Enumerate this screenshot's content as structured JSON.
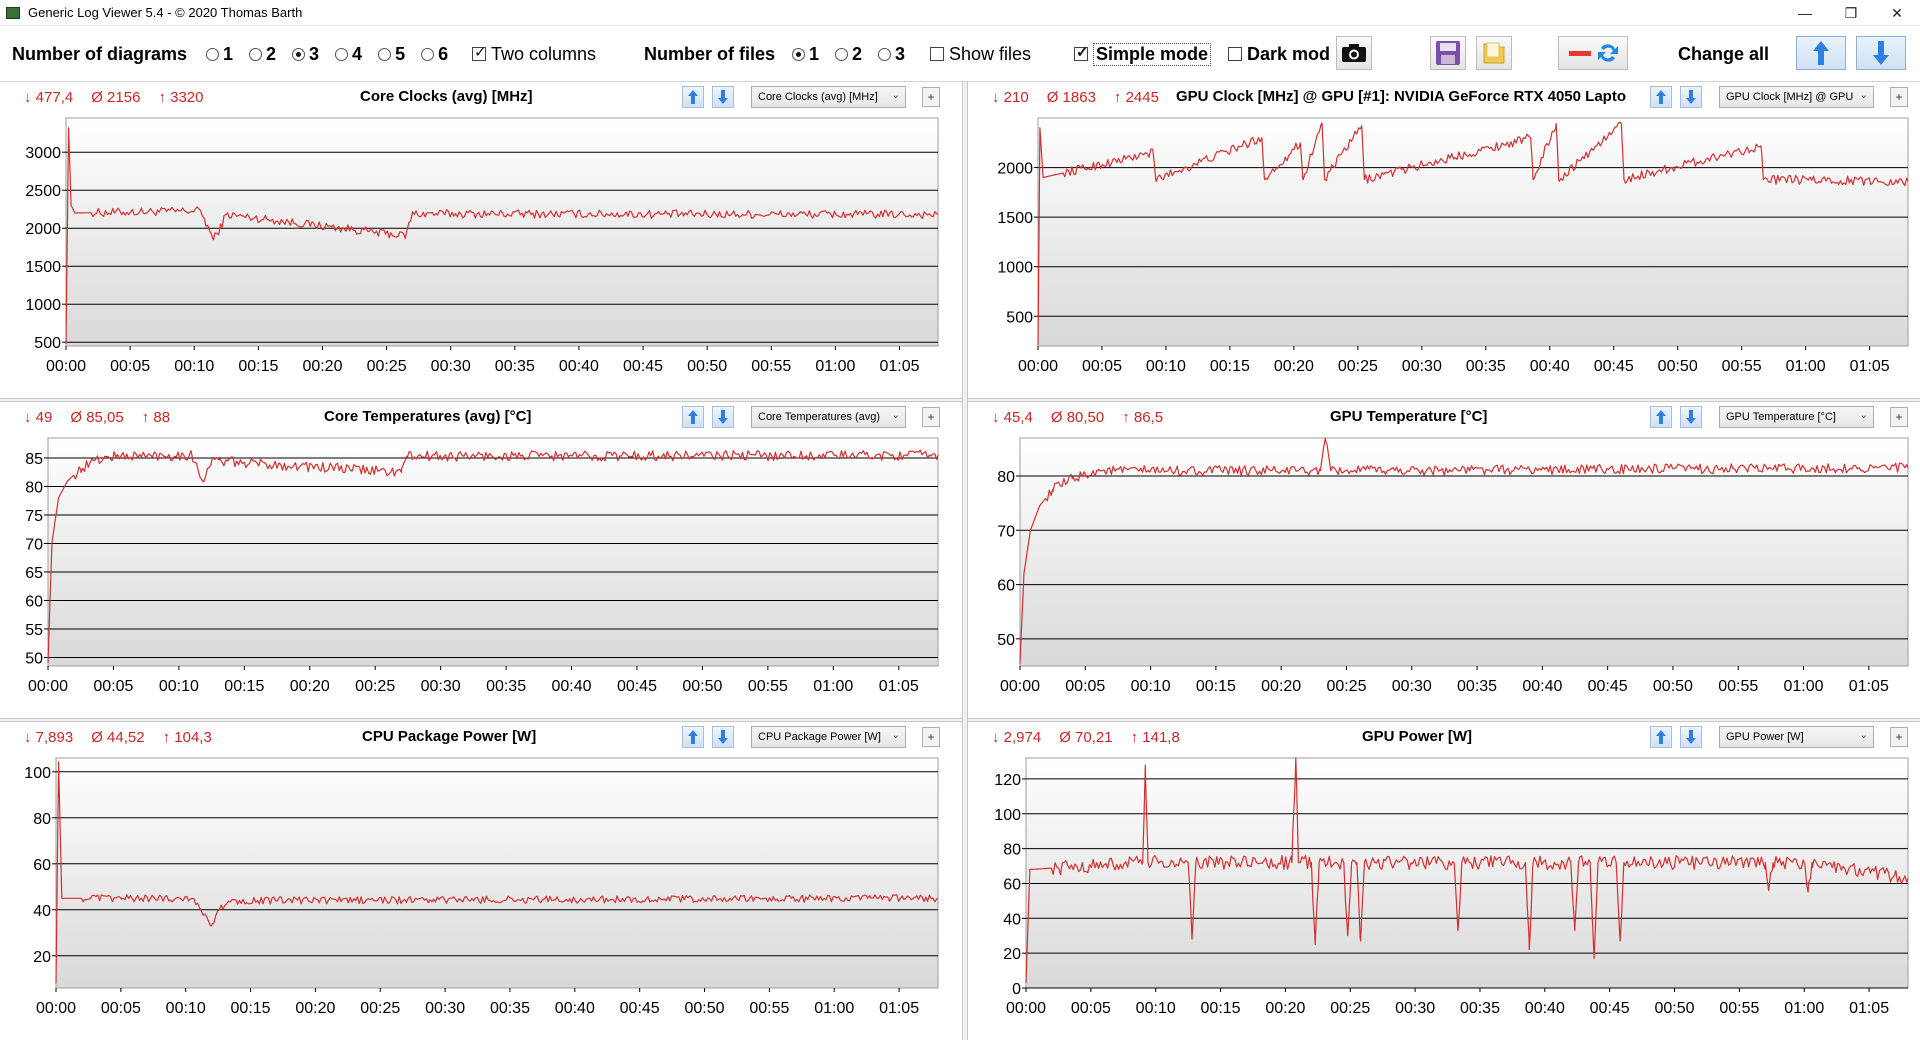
{
  "window": {
    "title": "Generic Log Viewer 5.4 - © 2020 Thomas Barth",
    "minimize": "—",
    "restore": "❐",
    "close": "✕"
  },
  "toolbar": {
    "diagrams_label": "Number of diagrams",
    "diagram_options": [
      "1",
      "2",
      "3",
      "4",
      "5",
      "6"
    ],
    "diagrams_selected": "3",
    "two_columns_label": "Two columns",
    "two_columns_checked": true,
    "files_label": "Number of files",
    "file_options": [
      "1",
      "2",
      "3"
    ],
    "files_selected": "1",
    "show_files_label": "Show files",
    "show_files_checked": false,
    "simple_mode_label": "Simple mode",
    "simple_mode_checked": true,
    "dark_mode_label": "Dark mod",
    "dark_mode_checked": false,
    "change_all_label": "Change all"
  },
  "colors": {
    "series": "#d32f2f",
    "stats": "#c62828",
    "grid": "#000000",
    "plot_gradient_bottom": "#d9d9d9"
  },
  "panels": [
    {
      "title": "Core Clocks (avg) [MHz]",
      "stat_min": "↓ 477,4",
      "stat_avg": "Ø 2156",
      "stat_max": "↑ 3320",
      "select_label": "Core Clocks (avg) [MHz]",
      "chart_data": {
        "type": "line",
        "title": "Core Clocks (avg) [MHz]",
        "xlabel": "",
        "ylabel": "",
        "x_ticks": [
          "00:00",
          "00:05",
          "00:10",
          "00:15",
          "00:20",
          "00:25",
          "00:30",
          "00:35",
          "00:40",
          "00:45",
          "00:50",
          "00:55",
          "01:00",
          "01:05"
        ],
        "x_range_min": [
          0,
          68
        ],
        "y_ticks": [
          500,
          1000,
          1500,
          2000,
          2500,
          3000
        ],
        "ylim": [
          450,
          3450
        ],
        "series": [
          {
            "min": 477.4,
            "avg": 2156,
            "max": 3320,
            "baseline": 2170,
            "noise": 55,
            "points": [
              [
                0,
                477
              ],
              [
                0.2,
                3320
              ],
              [
                0.4,
                2300
              ],
              [
                0.7,
                2200
              ],
              [
                10.5,
                2230
              ],
              [
                11.5,
                1850
              ],
              [
                12,
                2000
              ],
              [
                12.5,
                2180
              ],
              [
                26.5,
                1900
              ],
              [
                27,
                2190
              ],
              [
                68,
                2180
              ]
            ]
          }
        ],
        "grid": true
      }
    },
    {
      "title": "GPU Clock [MHz] @ GPU [#1]: NVIDIA GeForce RTX 4050 Lapto",
      "stat_min": "↓ 210",
      "stat_avg": "Ø 1863",
      "stat_max": "↑ 2445",
      "select_label": "GPU Clock [MHz] @ GPU",
      "chart_data": {
        "type": "line",
        "title": "GPU Clock [MHz] @ GPU [#1]: NVIDIA GeForce RTX 4050 Lapto",
        "xlabel": "",
        "ylabel": "",
        "x_ticks": [
          "00:00",
          "00:05",
          "00:10",
          "00:15",
          "00:20",
          "00:25",
          "00:30",
          "00:35",
          "00:40",
          "00:45",
          "00:50",
          "00:55",
          "01:00",
          "01:05"
        ],
        "x_range_min": [
          0,
          68
        ],
        "y_ticks": [
          500,
          1000,
          1500,
          2000
        ],
        "ylim": [
          200,
          2500
        ],
        "series": [
          {
            "min": 210,
            "avg": 1863,
            "max": 2445,
            "baseline": 1870,
            "noise": 45,
            "points": [
              [
                0,
                210
              ],
              [
                0.15,
                2400
              ],
              [
                0.4,
                1900
              ],
              [
                9,
                2150
              ],
              [
                9.2,
                1880
              ],
              [
                17.5,
                2300
              ],
              [
                17.7,
                1880
              ],
              [
                20.5,
                2250
              ],
              [
                20.7,
                1880
              ],
              [
                22.2,
                2450
              ],
              [
                22.4,
                1880
              ],
              [
                25.3,
                2420
              ],
              [
                25.5,
                1880
              ],
              [
                38.5,
                2300
              ],
              [
                38.7,
                1880
              ],
              [
                40.5,
                2445
              ],
              [
                40.7,
                1880
              ],
              [
                45.6,
                2440
              ],
              [
                45.8,
                1880
              ],
              [
                56.5,
                2220
              ],
              [
                56.7,
                1880
              ],
              [
                68,
                1860
              ]
            ]
          }
        ],
        "grid": true
      }
    },
    {
      "title": "Core Temperatures (avg) [°C]",
      "stat_min": "↓ 49",
      "stat_avg": "Ø 85,05",
      "stat_max": "↑ 88",
      "select_label": "Core Temperatures (avg)",
      "chart_data": {
        "type": "line",
        "title": "Core Temperatures (avg) [°C]",
        "xlabel": "",
        "ylabel": "",
        "x_ticks": [
          "00:00",
          "00:05",
          "00:10",
          "00:15",
          "00:20",
          "00:25",
          "00:30",
          "00:35",
          "00:40",
          "00:45",
          "00:50",
          "00:55",
          "01:00",
          "01:05"
        ],
        "x_range_min": [
          0,
          68
        ],
        "y_ticks": [
          50,
          55,
          60,
          65,
          70,
          75,
          80,
          85
        ],
        "ylim": [
          48.5,
          88.5
        ],
        "series": [
          {
            "min": 49,
            "avg": 85.05,
            "max": 88,
            "baseline": 85.3,
            "noise": 0.9,
            "points": [
              [
                0,
                49
              ],
              [
                0.3,
                70
              ],
              [
                0.8,
                78
              ],
              [
                1.5,
                81
              ],
              [
                2.5,
                83
              ],
              [
                3.5,
                84.5
              ],
              [
                5,
                85.3
              ],
              [
                11,
                85.5
              ],
              [
                11.8,
                81
              ],
              [
                12.5,
                84.5
              ],
              [
                27,
                82.5
              ],
              [
                27.4,
                85.3
              ],
              [
                68,
                85.5
              ]
            ]
          }
        ],
        "grid": true
      }
    },
    {
      "title": "GPU Temperature [°C]",
      "stat_min": "↓ 45,4",
      "stat_avg": "Ø 80,50",
      "stat_max": "↑ 86,5",
      "select_label": "GPU Temperature [°C]",
      "chart_data": {
        "type": "line",
        "title": "GPU Temperature [°C]",
        "xlabel": "",
        "ylabel": "",
        "x_ticks": [
          "00:00",
          "00:05",
          "00:10",
          "00:15",
          "00:20",
          "00:25",
          "00:30",
          "00:35",
          "00:40",
          "00:45",
          "00:50",
          "00:55",
          "01:00",
          "01:05"
        ],
        "x_range_min": [
          0,
          68
        ],
        "y_ticks": [
          50,
          60,
          70,
          80
        ],
        "ylim": [
          45,
          87
        ],
        "series": [
          {
            "min": 45.4,
            "avg": 80.5,
            "max": 86.5,
            "baseline": 81.2,
            "noise": 0.9,
            "points": [
              [
                0,
                45.4
              ],
              [
                0.3,
                62
              ],
              [
                0.8,
                70
              ],
              [
                1.5,
                74.5
              ],
              [
                2.5,
                77.5
              ],
              [
                4,
                79.5
              ],
              [
                6,
                81
              ],
              [
                23,
                81
              ],
              [
                23.4,
                86.5
              ],
              [
                23.8,
                81
              ],
              [
                68,
                81.5
              ]
            ]
          }
        ],
        "grid": true
      }
    },
    {
      "title": "CPU Package Power [W]",
      "stat_min": "↓ 7,893",
      "stat_avg": "Ø 44,52",
      "stat_max": "↑ 104,3",
      "select_label": "CPU Package Power [W]",
      "chart_data": {
        "type": "line",
        "title": "CPU Package Power [W]",
        "xlabel": "",
        "ylabel": "",
        "x_ticks": [
          "00:00",
          "00:05",
          "00:10",
          "00:15",
          "00:20",
          "00:25",
          "00:30",
          "00:35",
          "00:40",
          "00:45",
          "00:50",
          "00:55",
          "01:00",
          "01:05"
        ],
        "x_range_min": [
          0,
          68
        ],
        "y_ticks": [
          20,
          40,
          60,
          80,
          100
        ],
        "ylim": [
          6,
          106
        ],
        "series": [
          {
            "min": 7.893,
            "avg": 44.52,
            "max": 104.3,
            "baseline": 45,
            "noise": 1.6,
            "points": [
              [
                0,
                7.9
              ],
              [
                0.2,
                104.3
              ],
              [
                0.45,
                45
              ],
              [
                10.5,
                45
              ],
              [
                11.5,
                38
              ],
              [
                12,
                33
              ],
              [
                12.6,
                40
              ],
              [
                13.5,
                44
              ],
              [
                68,
                45
              ]
            ]
          }
        ],
        "grid": true
      }
    },
    {
      "title": "GPU Power [W]",
      "stat_min": "↓ 2,974",
      "stat_avg": "Ø 70,21",
      "stat_max": "↑ 141,8",
      "select_label": "GPU Power [W]",
      "chart_data": {
        "type": "line",
        "title": "GPU Power [W]",
        "xlabel": "",
        "ylabel": "",
        "x_ticks": [
          "00:00",
          "00:05",
          "00:10",
          "00:15",
          "00:20",
          "00:25",
          "00:30",
          "00:35",
          "00:40",
          "00:45",
          "00:50",
          "00:55",
          "01:00",
          "01:05"
        ],
        "x_range_min": [
          0,
          68
        ],
        "y_ticks": [
          0,
          20,
          40,
          60,
          80,
          100,
          120
        ],
        "ylim": [
          0,
          132
        ],
        "series": [
          {
            "min": 2.974,
            "avg": 70.21,
            "max": 141.8,
            "baseline": 71,
            "noise": 4,
            "points": [
              [
                0,
                3
              ],
              [
                0.3,
                68
              ],
              [
                9,
                72
              ],
              [
                9.2,
                128
              ],
              [
                9.4,
                72
              ],
              [
                12.5,
                72
              ],
              [
                12.8,
                28
              ],
              [
                13.1,
                72
              ],
              [
                20.5,
                72
              ],
              [
                20.8,
                132
              ],
              [
                21,
                72
              ],
              [
                22,
                72
              ],
              [
                22.3,
                25
              ],
              [
                22.6,
                72
              ],
              [
                24.5,
                72
              ],
              [
                24.8,
                30
              ],
              [
                25.1,
                72
              ],
              [
                25.5,
                72
              ],
              [
                25.8,
                27
              ],
              [
                26.1,
                72
              ],
              [
                33,
                72
              ],
              [
                33.3,
                33
              ],
              [
                33.6,
                72
              ],
              [
                38.5,
                72
              ],
              [
                38.8,
                22
              ],
              [
                39.1,
                72
              ],
              [
                42,
                72
              ],
              [
                42.3,
                33
              ],
              [
                42.6,
                72
              ],
              [
                43.5,
                72
              ],
              [
                43.8,
                17
              ],
              [
                44.1,
                72
              ],
              [
                45.5,
                72
              ],
              [
                45.8,
                27
              ],
              [
                46.1,
                72
              ],
              [
                57,
                72
              ],
              [
                57.3,
                58
              ],
              [
                57.6,
                72
              ],
              [
                60,
                72
              ],
              [
                60.3,
                55
              ],
              [
                60.6,
                72
              ],
              [
                68,
                63
              ]
            ]
          }
        ],
        "grid": true
      }
    }
  ]
}
